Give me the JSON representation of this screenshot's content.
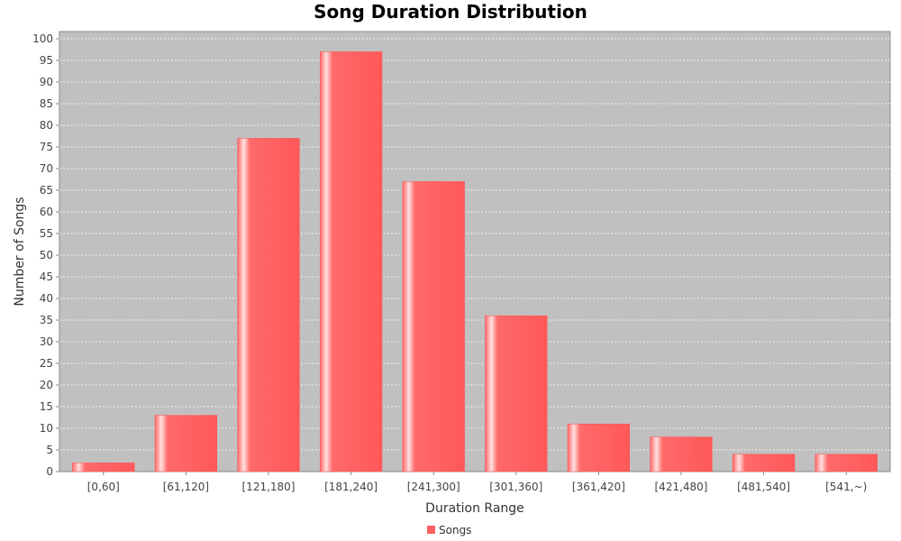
{
  "chart_data": {
    "type": "bar",
    "title": "Song Duration Distribution",
    "xlabel": "Duration Range",
    "ylabel": "Number of Songs",
    "categories": [
      "[0,60]",
      "[61,120]",
      "[121,180]",
      "[181,240]",
      "[241,300]",
      "[301,360]",
      "[361,420]",
      "[421,480]",
      "[481,540]",
      "[541,~)"
    ],
    "series": [
      {
        "name": "Songs",
        "values": [
          2,
          13,
          77,
          97,
          67,
          36,
          11,
          8,
          4,
          4
        ]
      }
    ],
    "ylim": [
      0,
      100
    ],
    "ytick_step": 5,
    "grid": true,
    "legend_position": "bottom-center",
    "colors": {
      "bar": "#ff6060",
      "plot_background": "#c0c0c0",
      "gridline": "#ffffff"
    }
  }
}
